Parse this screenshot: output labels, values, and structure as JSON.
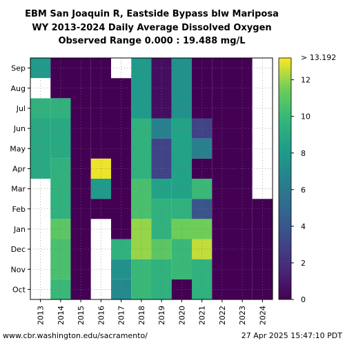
{
  "chart_data": {
    "type": "heatmap",
    "title_lines": [
      "EBM San Joaquin R, Eastside Bypass blw Mariposa",
      "WY 2013-2024 Daily Average Dissolved Oxygen",
      "Observed Range 0.000 : 19.488 mg/L"
    ],
    "x_categories": [
      "2013",
      "2014",
      "2015",
      "2016",
      "2017",
      "2018",
      "2019",
      "2020",
      "2021",
      "2022",
      "2023",
      "2024"
    ],
    "y_month_labels": [
      "Oct",
      "Nov",
      "Dec",
      "Jan",
      "Feb",
      "Mar",
      "Apr",
      "May",
      "Jun",
      "Jul",
      "Aug",
      "Sep"
    ],
    "colorbar": {
      "min": 0,
      "max": 13.192,
      "max_label": "> 13.192",
      "ticks": [
        0,
        2,
        4,
        6,
        8,
        10,
        12
      ],
      "colormap": "viridis"
    },
    "grid": true,
    "columns": [
      {
        "year": "2013",
        "segments": [
          {
            "from": "Oct",
            "to": "Apr",
            "value": null
          },
          {
            "from": "Apr",
            "to": "Jul",
            "value": 9.0
          },
          {
            "from": "Jul",
            "to": "Aug",
            "value": 9.5
          },
          {
            "from": "Aug",
            "to": "Sep",
            "value": null
          },
          {
            "from": "Sep",
            "to": "Oct",
            "value": 8.0
          }
        ]
      },
      {
        "year": "2014",
        "segments": [
          {
            "from": "Oct",
            "to": "Nov",
            "value": 10.0
          },
          {
            "from": "Nov",
            "to": "Jan",
            "value": 10.5
          },
          {
            "from": "Jan",
            "to": "Feb",
            "value": 11.0
          },
          {
            "from": "Feb",
            "to": "May",
            "value": 9.5
          },
          {
            "from": "May",
            "to": "Jul",
            "value": 9.0
          },
          {
            "from": "Jul",
            "to": "Aug",
            "value": 9.5
          },
          {
            "from": "Aug",
            "to": "Oct",
            "value": 0.0
          }
        ]
      },
      {
        "year": "2015",
        "segments": [
          {
            "from": "Oct",
            "to": "Oct",
            "value": 0.0
          }
        ]
      },
      {
        "year": "2016",
        "segments": [
          {
            "from": "Oct",
            "to": "Feb",
            "value": null
          },
          {
            "from": "Feb",
            "to": "Mar",
            "value": 0.0
          },
          {
            "from": "Mar",
            "to": "Apr",
            "value": 8.0
          },
          {
            "from": "Apr",
            "to": "May",
            "value": 13.0
          },
          {
            "from": "May",
            "to": "Oct",
            "value": 0.0
          }
        ]
      },
      {
        "year": "2017",
        "segments": [
          {
            "from": "Oct",
            "to": "Nov",
            "value": 7.0
          },
          {
            "from": "Nov",
            "to": "Dec",
            "value": 7.5
          },
          {
            "from": "Dec",
            "to": "Jan",
            "value": 9.5
          },
          {
            "from": "Jan",
            "to": "Sep",
            "value": 0.0
          },
          {
            "from": "Sep",
            "to": "Oct",
            "value": null
          }
        ]
      },
      {
        "year": "2018",
        "segments": [
          {
            "from": "Oct",
            "to": "Dec",
            "value": 10.0
          },
          {
            "from": "Dec",
            "to": "Feb",
            "value": 12.0
          },
          {
            "from": "Feb",
            "to": "Apr",
            "value": 10.5
          },
          {
            "from": "Apr",
            "to": "Jul",
            "value": 9.5
          },
          {
            "from": "Jul",
            "to": "Oct",
            "value": 8.0
          }
        ]
      },
      {
        "year": "2019",
        "segments": [
          {
            "from": "Oct",
            "to": "Dec",
            "value": 9.5
          },
          {
            "from": "Dec",
            "to": "Jan",
            "value": 11.0
          },
          {
            "from": "Jan",
            "to": "Mar",
            "value": 9.5
          },
          {
            "from": "Mar",
            "to": "Apr",
            "value": 8.5
          },
          {
            "from": "Apr",
            "to": "Jun",
            "value": 3.0
          },
          {
            "from": "Jun",
            "to": "Jul",
            "value": 6.5
          },
          {
            "from": "Jul",
            "to": "Oct",
            "value": 0.5
          }
        ]
      },
      {
        "year": "2020",
        "segments": [
          {
            "from": "Oct",
            "to": "Nov",
            "value": 0.0
          },
          {
            "from": "Nov",
            "to": "Jan",
            "value": 10.0
          },
          {
            "from": "Jan",
            "to": "Feb",
            "value": 11.5
          },
          {
            "from": "Feb",
            "to": "Mar",
            "value": 9.5
          },
          {
            "from": "Mar",
            "to": "Jul",
            "value": 8.5
          },
          {
            "from": "Jul",
            "to": "Oct",
            "value": 7.5
          }
        ]
      },
      {
        "year": "2021",
        "segments": [
          {
            "from": "Oct",
            "to": "Dec",
            "value": 9.5
          },
          {
            "from": "Dec",
            "to": "Jan",
            "value": 12.5
          },
          {
            "from": "Jan",
            "to": "Feb",
            "value": 11.5
          },
          {
            "from": "Feb",
            "to": "Mar",
            "value": 4.0
          },
          {
            "from": "Mar",
            "to": "Apr",
            "value": 10.0
          },
          {
            "from": "Apr",
            "to": "May",
            "value": 0.0
          },
          {
            "from": "May",
            "to": "Jun",
            "value": 6.5
          },
          {
            "from": "Jun",
            "to": "Jul",
            "value": 3.0
          },
          {
            "from": "Jul",
            "to": "Oct",
            "value": 0.0
          }
        ]
      },
      {
        "year": "2022",
        "segments": [
          {
            "from": "Oct",
            "to": "Oct",
            "value": 0.0
          }
        ]
      },
      {
        "year": "2023",
        "segments": [
          {
            "from": "Oct",
            "to": "Oct",
            "value": 0.0
          }
        ]
      },
      {
        "year": "2024",
        "segments": [
          {
            "from": "Oct",
            "to": "Mar",
            "value": 0.0
          },
          {
            "from": "Mar",
            "to": "Oct",
            "value": null
          }
        ]
      }
    ]
  },
  "footer": {
    "source": "www.cbr.washington.edu/sacramento/",
    "timestamp": "27 Apr 2025 15:47:10 PDT"
  }
}
